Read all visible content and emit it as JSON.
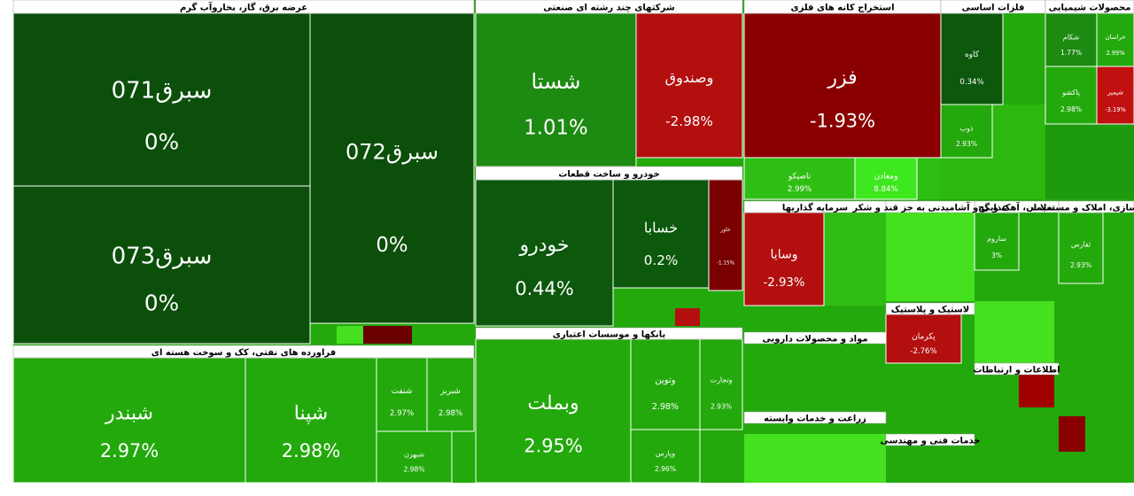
{
  "chart_data": {
    "type": "treemap",
    "sectors": [
      {
        "title": "عرضه برق، گاز، بخاروآب گرم",
        "categories": [
          "سبرق071",
          "سبرق073",
          "سبرق072"
        ],
        "values": [
          0,
          0,
          0
        ],
        "value_labels": [
          "0%",
          "0%",
          "0%"
        ],
        "colors": [
          "#0b4f0b",
          "#0b4f0b",
          "#0b4f0b"
        ]
      },
      {
        "title": "فراورده های نفتی، کک و سوخت هسته ای",
        "categories": [
          "شبندر",
          "شپنا",
          "شنفت",
          "شبریز",
          "شبهرن"
        ],
        "values": [
          2.97,
          2.98,
          2.97,
          2.98,
          2.98
        ],
        "value_labels": [
          "2.97%",
          "2.98%",
          "2.97%",
          "2.98%",
          "2.98%"
        ],
        "colors": [
          "#23a90c",
          "#23a90c",
          "#23a90c",
          "#23a90c",
          "#23a90c"
        ]
      },
      {
        "title": "شرکتهای چند رشته ای صنعتی",
        "categories": [
          "شستا",
          "وصندوق"
        ],
        "values": [
          1.01,
          -2.98
        ],
        "value_labels": [
          "1.01%",
          "-2.98%"
        ],
        "colors": [
          "#1d8a12",
          "#b30f0f"
        ]
      },
      {
        "title": "خودرو و ساخت قطعات",
        "categories": [
          "خودرو",
          "خسابا",
          "خاور"
        ],
        "values": [
          0.44,
          0.2,
          -1.15
        ],
        "value_labels": [
          "0.44%",
          "0.2%",
          "-1.15%"
        ],
        "colors": [
          "#0c580c",
          "#0c580c",
          "#7a0000"
        ]
      },
      {
        "title": "بانکها و موسسات اعتباری",
        "categories": [
          "وبملت",
          "وتوین",
          "وتجارت",
          "وپارس"
        ],
        "values": [
          2.95,
          2.98,
          2.93,
          2.96
        ],
        "value_labels": [
          "2.95%",
          "2.98%",
          "2.93%",
          "2.96%"
        ],
        "colors": [
          "#23a90c",
          "#23a90c",
          "#23a90c",
          "#23a90c"
        ]
      },
      {
        "title": "استخراج کانه های فلزی",
        "categories": [
          "فزر",
          "تاصیکو",
          "ومعادن"
        ],
        "values": [
          -1.93,
          2.99,
          8.84
        ],
        "value_labels": [
          "-1.93%",
          "2.99%",
          "8.84%"
        ],
        "colors": [
          "#8a0000",
          "#2fbe13",
          "#3ee81f"
        ]
      },
      {
        "title": "فلزات اساسی",
        "categories": [
          "کاوه",
          "ذوب"
        ],
        "values": [
          0.34,
          2.93
        ],
        "value_labels": [
          "0.34%",
          "2.93%"
        ],
        "colors": [
          "#0c580c",
          "#23a90c"
        ]
      },
      {
        "title": "محصولات شیمیایی",
        "categories": [
          "شکام",
          "خراسان",
          "پاکشو",
          "شپمیر"
        ],
        "values": [
          1.77,
          2.99,
          2.98,
          -3.19
        ],
        "value_labels": [
          "1.77%",
          "2.99%",
          "2.98%",
          "-3.19%"
        ],
        "colors": [
          "#1d8a12",
          "#23a90c",
          "#23a90c",
          "#c01010"
        ]
      },
      {
        "title": "سرمایه گذاریها",
        "categories": [
          "وسایا"
        ],
        "values": [
          -2.93
        ],
        "value_labels": [
          "-2.93%"
        ],
        "colors": [
          "#b30f0f"
        ]
      },
      {
        "title": "سیمان، آهک و گچ",
        "categories": [
          "ساروم"
        ],
        "values": [
          3
        ],
        "value_labels": [
          "3%"
        ],
        "colors": [
          "#23a90c"
        ]
      },
      {
        "title": "انبوه سازی، املاک و مستغلات",
        "categories": [
          "ثفارس"
        ],
        "values": [
          2.93
        ],
        "value_labels": [
          "2.93%"
        ],
        "colors": [
          "#23a90c"
        ]
      },
      {
        "title": "مواد و محصولات دارویی",
        "categories": [],
        "values": [],
        "value_labels": [],
        "colors": []
      },
      {
        "title": "زراعت و خدمات وابسته",
        "categories": [],
        "values": [],
        "value_labels": [],
        "colors": []
      },
      {
        "title": "لاستیک و پلاستیک",
        "categories": [
          "پکرمان"
        ],
        "values": [
          -2.76
        ],
        "value_labels": [
          "-2.76%"
        ],
        "colors": [
          "#b30f0f"
        ]
      },
      {
        "title": "اطلاعات و ارتباطات",
        "categories": [],
        "values": [],
        "value_labels": [],
        "colors": []
      },
      {
        "title": "خدمات فنی و مهندسی",
        "categories": [],
        "values": [],
        "value_labels": [],
        "colors": []
      },
      {
        "title": "غذایی و آشامیدنی به جز قند و شکر",
        "categories": [],
        "values": [],
        "value_labels": [],
        "colors": []
      }
    ]
  }
}
